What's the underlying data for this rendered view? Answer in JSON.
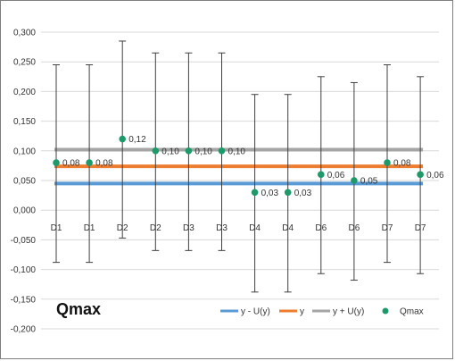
{
  "chart_data": {
    "type": "scatter",
    "title": "Qmax",
    "categories": [
      "D1",
      "D1",
      "D2",
      "D2",
      "D3",
      "D3",
      "D4",
      "D4",
      "D6",
      "D6",
      "D7",
      "D7"
    ],
    "ylim": [
      -0.2,
      0.3
    ],
    "yticks": [
      0.3,
      0.25,
      0.2,
      0.15,
      0.1,
      0.05,
      0.0,
      -0.05,
      -0.1,
      -0.15,
      -0.2
    ],
    "ytick_labels": [
      "0,300",
      "0,250",
      "0,200",
      "0,150",
      "0,100",
      "0,050",
      "0,000",
      "-0,050",
      "-0,100",
      "-0,150",
      "-0,200"
    ],
    "grid": "horizontal",
    "legend_position": "bottom-right",
    "series": [
      {
        "name": "Qmax",
        "kind": "points",
        "color": "#1e9a6a",
        "values": [
          0.08,
          0.08,
          0.12,
          0.1,
          0.1,
          0.1,
          0.03,
          0.03,
          0.06,
          0.05,
          0.08,
          0.06
        ],
        "labels": [
          "0,08",
          "0,08",
          "0,12",
          "0,10",
          "0,10",
          "0,10",
          "0,03",
          "0,03",
          "0,06",
          "0,05",
          "0,08",
          "0,06"
        ],
        "error_upper": [
          0.245,
          0.245,
          0.285,
          0.265,
          0.265,
          0.265,
          0.195,
          0.195,
          0.225,
          0.215,
          0.245,
          0.225
        ],
        "error_lower": [
          -0.088,
          -0.088,
          -0.047,
          -0.068,
          -0.068,
          -0.068,
          -0.138,
          -0.138,
          -0.107,
          -0.118,
          -0.088,
          -0.107
        ]
      },
      {
        "name": "y - U(y)",
        "kind": "line",
        "color": "#5b9bd5",
        "value": 0.045
      },
      {
        "name": "y",
        "kind": "line",
        "color": "#ed7d31",
        "value": 0.074
      },
      {
        "name": "y + U(y)",
        "kind": "line",
        "color": "#a5a5a5",
        "value": 0.102
      }
    ],
    "legend": [
      {
        "label": "y - U(y)",
        "color": "#5b9bd5",
        "marker": "line"
      },
      {
        "label": "y",
        "color": "#ed7d31",
        "marker": "line"
      },
      {
        "label": "y + U(y)",
        "color": "#a5a5a5",
        "marker": "line"
      },
      {
        "label": "Qmax",
        "color": "#1e9a6a",
        "marker": "dot"
      }
    ]
  }
}
